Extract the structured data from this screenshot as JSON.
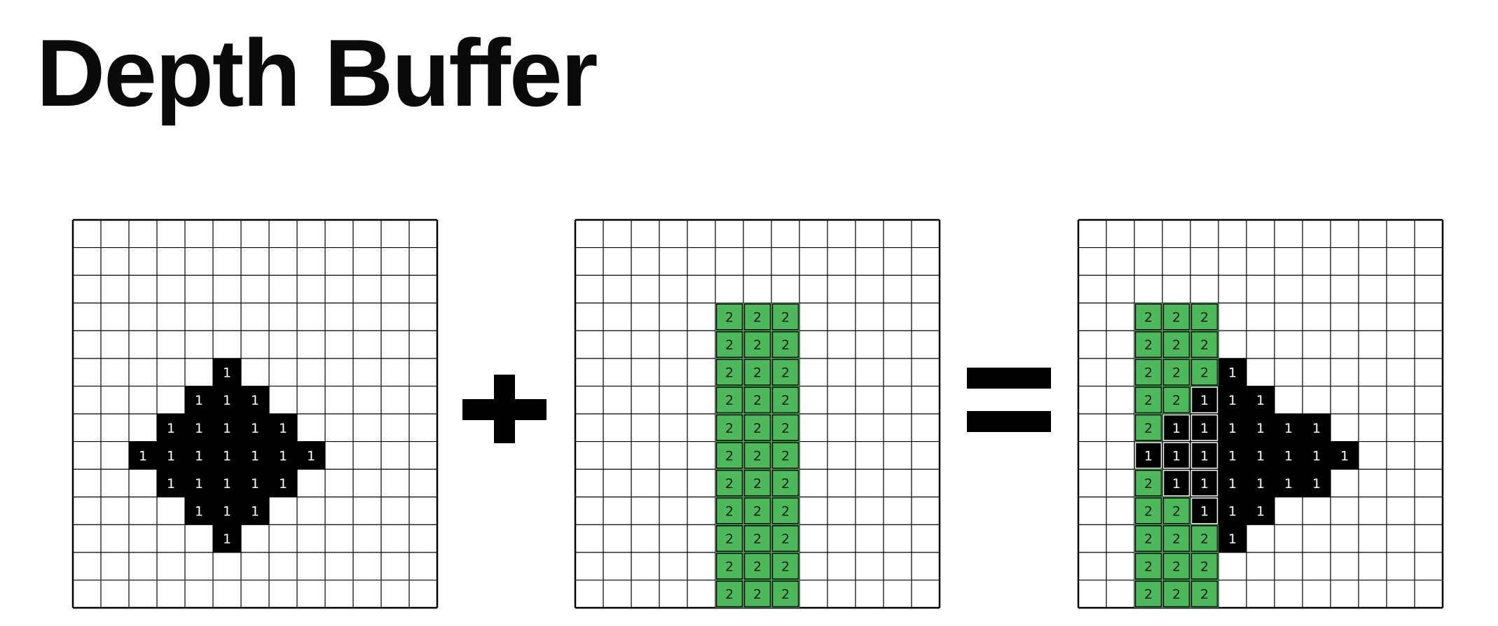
{
  "title": "Depth Buffer",
  "operators": {
    "plus": "+",
    "equals": "="
  },
  "colors": {
    "black_shape": "#000000",
    "green_shape": "#4cba5a",
    "grid_line": "#000000",
    "background": "#ffffff"
  },
  "grids": {
    "columns": 13,
    "rows": 14,
    "black_shape": {
      "value": "1",
      "rows": [
        {
          "row": 5,
          "cols": [
            5
          ]
        },
        {
          "row": 6,
          "cols": [
            4,
            5,
            6
          ]
        },
        {
          "row": 7,
          "cols": [
            3,
            4,
            5,
            6,
            7
          ]
        },
        {
          "row": 8,
          "cols": [
            2,
            3,
            4,
            5,
            6,
            7,
            8
          ]
        },
        {
          "row": 9,
          "cols": [
            3,
            4,
            5,
            6,
            7
          ]
        },
        {
          "row": 10,
          "cols": [
            4,
            5,
            6
          ]
        },
        {
          "row": 11,
          "cols": [
            5
          ]
        }
      ]
    },
    "green_shape": {
      "value": "2",
      "cols": [
        5,
        6,
        7
      ],
      "row_start": 3,
      "row_end": 14
    },
    "result": {
      "cells": [
        "2,2,2,,,",
        "2,2,2,,,",
        "2,2,2,1,,",
        "2,2,1,1,1,",
        "2,1,1,1,1,1,1",
        "1,1,1,1,1,1,1,1",
        "2,1,1,1,1,1,1",
        "2,2,1,1,1,",
        "2,2,2,1,,",
        "2,2,2,,,",
        "2,2,2,,,"
      ]
    }
  }
}
